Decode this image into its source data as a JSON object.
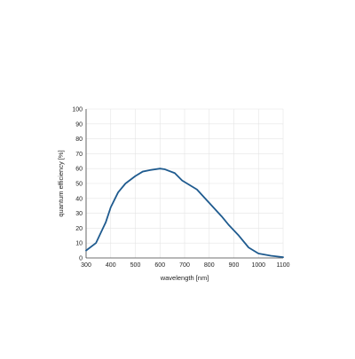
{
  "chart_data": {
    "type": "line",
    "title": "",
    "xlabel": "wavelength [nm]",
    "ylabel": "quantum efficiency [%]",
    "xlim": [
      300,
      1100
    ],
    "ylim": [
      0,
      100
    ],
    "x_ticks": [
      300,
      400,
      500,
      600,
      700,
      800,
      900,
      1000,
      1100
    ],
    "y_ticks": [
      0,
      10,
      20,
      30,
      40,
      50,
      60,
      70,
      80,
      90,
      100
    ],
    "grid": true,
    "legend": "none",
    "series": [
      {
        "color": "#1f5b8f",
        "x": [
          300,
          340,
          380,
          400,
          430,
          460,
          500,
          530,
          560,
          600,
          620,
          660,
          690,
          710,
          750,
          800,
          850,
          880,
          920,
          960,
          1000,
          1050,
          1100
        ],
        "y": [
          5,
          10,
          24,
          34,
          44,
          50,
          55,
          58,
          59,
          60,
          59.5,
          57,
          52,
          50,
          46,
          37,
          28,
          22,
          15,
          7,
          3,
          1.5,
          0.5
        ]
      }
    ]
  }
}
